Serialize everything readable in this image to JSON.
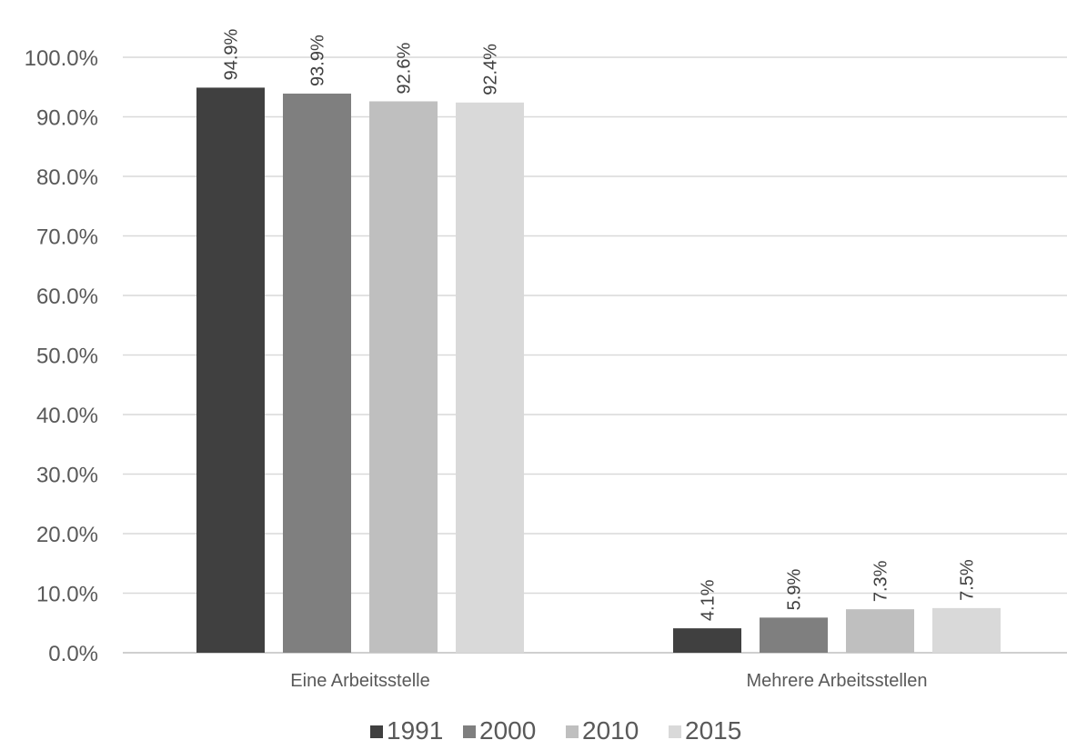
{
  "chart_data": {
    "type": "bar",
    "categories": [
      "Eine Arbeitsstelle",
      "Mehrere Arbeitsstellen"
    ],
    "series": [
      {
        "name": "1991",
        "values": [
          94.9,
          4.1
        ],
        "labels": [
          "94.9%",
          "4.1%"
        ],
        "color": "#404040"
      },
      {
        "name": "2000",
        "values": [
          93.9,
          5.9
        ],
        "labels": [
          "93.9%",
          "5.9%"
        ],
        "color": "#7f7f7f"
      },
      {
        "name": "2010",
        "values": [
          92.6,
          7.3
        ],
        "labels": [
          "92.6%",
          "7.3%"
        ],
        "color": "#bfbfbf"
      },
      {
        "name": "2015",
        "values": [
          92.4,
          7.5
        ],
        "labels": [
          "92.4%",
          "7.5%"
        ],
        "color": "#d9d9d9"
      }
    ],
    "yticks": [
      "0.0%",
      "10.0%",
      "20.0%",
      "30.0%",
      "40.0%",
      "50.0%",
      "60.0%",
      "70.0%",
      "80.0%",
      "90.0%",
      "100.0%"
    ],
    "ylim": [
      0,
      100
    ],
    "grid": true,
    "legend_position": "bottom",
    "gridline_color": "#d9d9d9"
  }
}
